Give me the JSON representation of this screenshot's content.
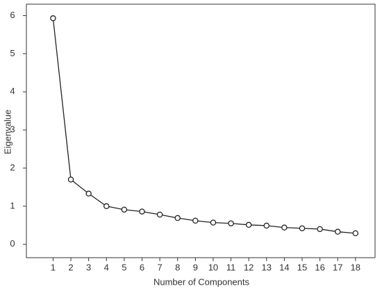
{
  "chart_data": {
    "type": "line",
    "xlabel": "Number of Components",
    "ylabel": "Eigenvalue",
    "x": [
      1,
      2,
      3,
      4,
      5,
      6,
      7,
      8,
      9,
      10,
      11,
      12,
      13,
      14,
      15,
      16,
      17,
      18
    ],
    "series": [
      {
        "color": "#222222",
        "values": [
          5.93,
          1.7,
          1.33,
          1.0,
          0.91,
          0.86,
          0.78,
          0.69,
          0.62,
          0.57,
          0.55,
          0.51,
          0.49,
          0.44,
          0.42,
          0.4,
          0.33,
          0.29
        ]
      }
    ],
    "xlim": [
      -0.5,
      19.1
    ],
    "ylim": [
      -0.35,
      6.3
    ],
    "xticks": [
      1,
      2,
      3,
      4,
      5,
      6,
      7,
      8,
      9,
      10,
      11,
      12,
      13,
      14,
      15,
      16,
      17,
      18
    ],
    "yticks": [
      0,
      1,
      2,
      3,
      4,
      5,
      6
    ],
    "markers": "open-circle"
  }
}
